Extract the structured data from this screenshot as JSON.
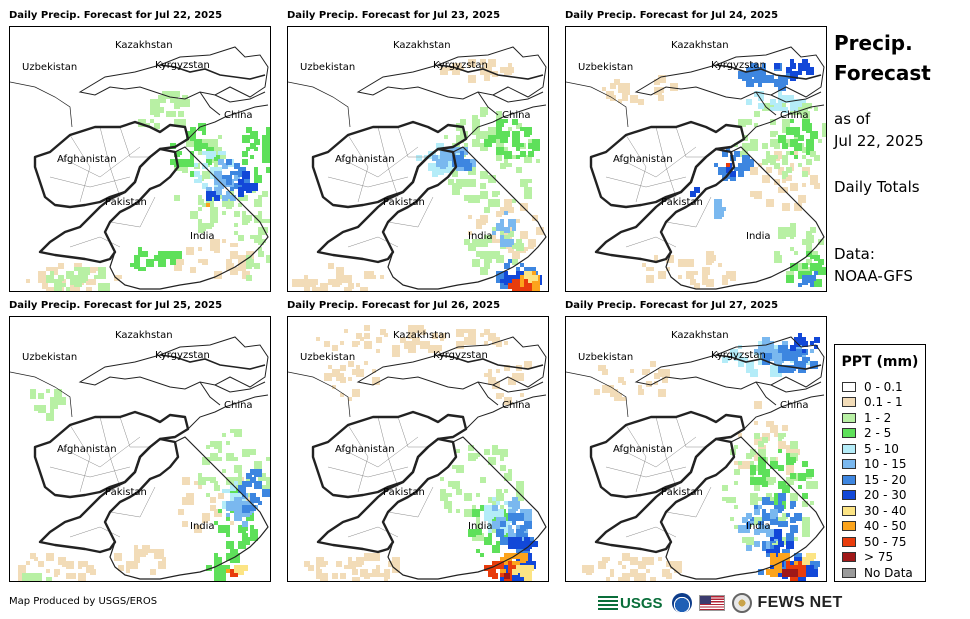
{
  "panels": [
    {
      "title": "Daily Precip. Forecast for Jul 22, 2025",
      "scenario": 1
    },
    {
      "title": "Daily Precip. Forecast for Jul 23, 2025",
      "scenario": 2
    },
    {
      "title": "Daily Precip. Forecast for Jul 24, 2025",
      "scenario": 3
    },
    {
      "title": "Daily Precip. Forecast for Jul 25, 2025",
      "scenario": 4
    },
    {
      "title": "Daily Precip. Forecast for Jul 26, 2025",
      "scenario": 5
    },
    {
      "title": "Daily Precip. Forecast for Jul 27, 2025",
      "scenario": 6
    }
  ],
  "map_labels": {
    "kazakhstan": "Kazakhstan",
    "uzbekistan": "Uzbekistan",
    "kyrgyzstan": "Kyrgyzstan",
    "china": "China",
    "afghanistan": "Afghanistan",
    "pakistan": "Pakistan",
    "india": "India"
  },
  "side": {
    "title_line1": "Precip.",
    "title_line2": "Forecast",
    "as_of": "as of",
    "date": "Jul 22, 2025",
    "totals": "Daily Totals",
    "data_label": "Data:",
    "data_source": "NOAA-GFS"
  },
  "legend": {
    "title": "PPT (mm)",
    "items": [
      {
        "label": "0 - 0.1",
        "color": "#ffffff"
      },
      {
        "label": "0.1 - 1",
        "color": "#f2dcb8"
      },
      {
        "label": "1 - 2",
        "color": "#b8f0a4"
      },
      {
        "label": "2 - 5",
        "color": "#5ee05a"
      },
      {
        "label": "5 - 10",
        "color": "#b4ecf8"
      },
      {
        "label": "10 - 15",
        "color": "#7ab8ef"
      },
      {
        "label": "15 - 20",
        "color": "#3d86e0"
      },
      {
        "label": "20 - 30",
        "color": "#1248d8"
      },
      {
        "label": "30 - 40",
        "color": "#fce484"
      },
      {
        "label": "40 - 50",
        "color": "#fca41c"
      },
      {
        "label": "50 - 75",
        "color": "#e83c0c"
      },
      {
        "label": "> 75",
        "color": "#a01818"
      },
      {
        "label": "No Data",
        "color": "#9a9a9a"
      }
    ]
  },
  "footer": {
    "credit": "Map Produced by USGS/EROS",
    "usgs": "USGS",
    "fews": "FEWS NET"
  }
}
